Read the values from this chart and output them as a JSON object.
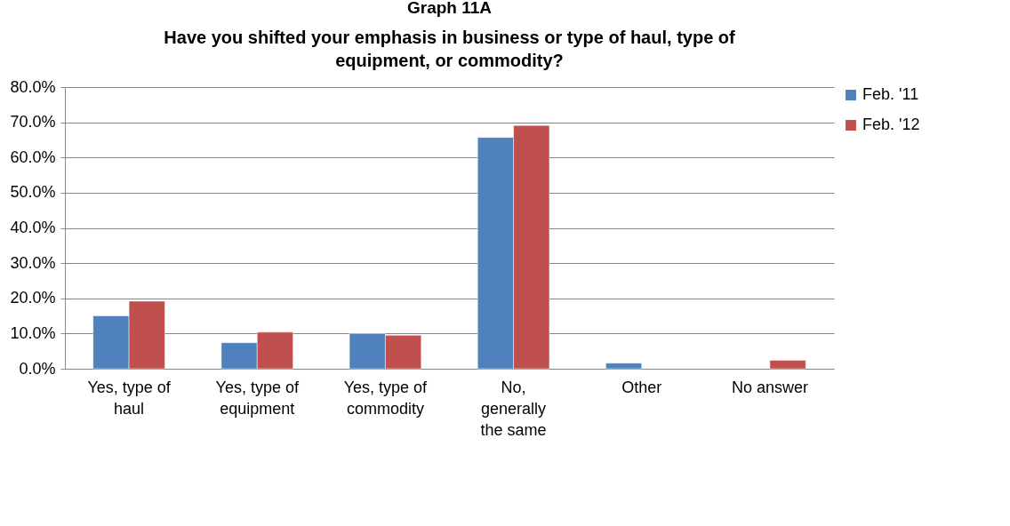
{
  "chart_data": {
    "type": "bar",
    "title": "Graph 11A",
    "subtitle": "Have you shifted your emphasis in business or type of haul, type of equipment, or commodity?",
    "categories": [
      "Yes, type of haul",
      "Yes, type of equipment",
      "Yes, type of commodity",
      "No, generally the same",
      "Other",
      "No answer"
    ],
    "series": [
      {
        "name": "Feb. '11",
        "color": "#4f81bd",
        "values": [
          15.0,
          7.4,
          10.0,
          65.7,
          1.6,
          null
        ]
      },
      {
        "name": "Feb. '12",
        "color": "#c0504d",
        "values": [
          19.2,
          10.4,
          9.5,
          69.1,
          null,
          2.4
        ]
      }
    ],
    "ylim": [
      0,
      80
    ],
    "yticks": [
      {
        "value": 0,
        "label": "0.0%"
      },
      {
        "value": 10,
        "label": "10.0%"
      },
      {
        "value": 20,
        "label": "20.0%"
      },
      {
        "value": 30,
        "label": "30.0%"
      },
      {
        "value": 40,
        "label": "40.0%"
      },
      {
        "value": 50,
        "label": "50.0%"
      },
      {
        "value": 60,
        "label": "60.0%"
      },
      {
        "value": 70,
        "label": "70.0%"
      },
      {
        "value": 80,
        "label": "80.0%"
      }
    ],
    "grid": "y",
    "legend": "right"
  }
}
